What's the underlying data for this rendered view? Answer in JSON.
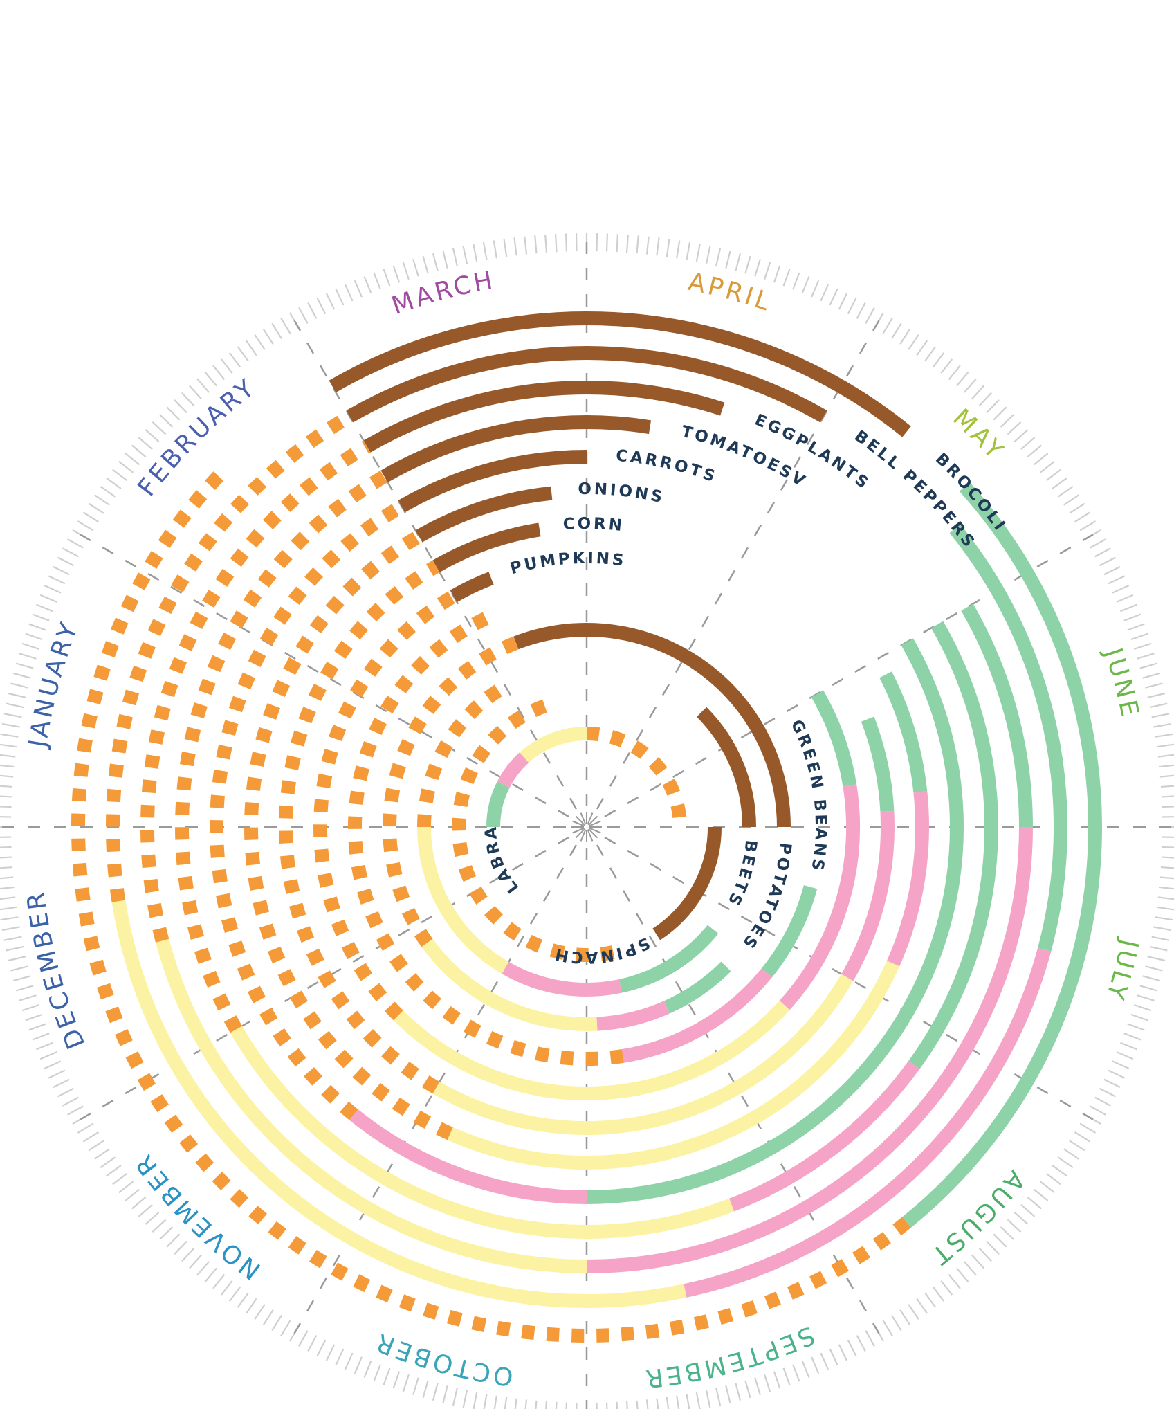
{
  "chart_data": {
    "type": "radial-timeline",
    "months": [
      {
        "label": "JANUARY",
        "color": "#3c63a8"
      },
      {
        "label": "FEBRUARY",
        "color": "#4a5fae"
      },
      {
        "label": "MARCH",
        "color": "#a04ba0"
      },
      {
        "label": "APRIL",
        "color": "#d99a3a"
      },
      {
        "label": "MAY",
        "color": "#a2c13c"
      },
      {
        "label": "JUNE",
        "color": "#6bb84a"
      },
      {
        "label": "JULY",
        "color": "#6bb84a"
      },
      {
        "label": "AUGUST",
        "color": "#4aad6a"
      },
      {
        "label": "SEPTEMBER",
        "color": "#4ab38c"
      },
      {
        "label": "OCTOBER",
        "color": "#3aa5b8"
      },
      {
        "label": "NOVEMBER",
        "color": "#2a92c4"
      },
      {
        "label": "DECEMBER",
        "color": "#3c63a8"
      }
    ],
    "phase_colors": {
      "indoor": "#98592a",
      "growing": "#8ed2a8",
      "harvest": "#f5a4c8",
      "late": "#fbf3a3",
      "dormant": "#f59a38"
    },
    "crops": [
      {
        "name": "BROCOLI",
        "segments": [
          [
            "indoor",
            2.0,
            4.3
          ],
          [
            "growing",
            4.6,
            7.7
          ],
          [
            "dormant",
            7.7,
            13.5
          ]
        ]
      },
      {
        "name": "BELL PEPPERS",
        "segments": [
          [
            "indoor",
            2.0,
            4.0
          ],
          [
            "growing",
            4.7,
            6.5
          ],
          [
            "harvest",
            6.5,
            8.6
          ],
          [
            "late",
            8.6,
            11.7
          ],
          [
            "dormant",
            11.7,
            14.0
          ]
        ]
      },
      {
        "name": "EGGPLANTS",
        "segments": [
          [
            "indoor",
            2.0,
            3.6
          ],
          [
            "growing",
            5.0,
            6.0
          ],
          [
            "harvest",
            6.0,
            9.0
          ],
          [
            "late",
            9.0,
            11.5
          ],
          [
            "dormant",
            11.5,
            14.0
          ]
        ]
      },
      {
        "name": "TOMATOESV",
        "segments": [
          [
            "indoor",
            2.0,
            3.3
          ],
          [
            "growing",
            5.0,
            7.2
          ],
          [
            "harvest",
            7.2,
            8.3
          ],
          [
            "late",
            8.3,
            11.0
          ],
          [
            "dormant",
            11.0,
            14.0
          ]
        ]
      },
      {
        "name": "CARROTS",
        "segments": [
          [
            "indoor",
            2.0,
            3.0
          ],
          [
            "growing",
            5.0,
            9.0
          ],
          [
            "harvest",
            9.0,
            10.3
          ],
          [
            "dormant",
            10.3,
            14.0
          ]
        ]
      },
      {
        "name": "ONIONS",
        "segments": [
          [
            "indoor",
            2.0,
            2.8
          ],
          [
            "growing",
            5.1,
            5.8
          ],
          [
            "harvest",
            5.8,
            6.8
          ],
          [
            "late",
            6.8,
            9.8
          ],
          [
            "dormant",
            9.8,
            14.0
          ]
        ]
      },
      {
        "name": "CORN",
        "segments": [
          [
            "indoor",
            2.0,
            2.7
          ],
          [
            "growing",
            5.3,
            5.9
          ],
          [
            "harvest",
            5.9,
            7.0
          ],
          [
            "late",
            7.0,
            10.0
          ],
          [
            "dormant",
            10.0,
            14.0
          ]
        ]
      },
      {
        "name": "PUMPKINS",
        "segments": [
          [
            "indoor",
            2.0,
            2.3
          ],
          [
            "growing",
            5.0,
            5.7
          ],
          [
            "harvest",
            5.7,
            7.4
          ],
          [
            "late",
            7.4,
            10.5
          ],
          [
            "dormant",
            10.5,
            14.0
          ]
        ]
      },
      {
        "name": "GREEN BEANS",
        "segments": [
          [
            "growing",
            6.5,
            7.3
          ],
          [
            "harvest",
            7.3,
            8.7
          ],
          [
            "dormant",
            8.7,
            14.2
          ]
        ]
      },
      {
        "name": "POTATOES",
        "segments": [
          [
            "indoor",
            2.3,
            6.0
          ],
          [
            "growing",
            7.5,
            8.2
          ],
          [
            "harvest",
            8.2,
            8.9
          ],
          [
            "late",
            8.9,
            10.8
          ],
          [
            "dormant",
            10.8,
            14.3
          ]
        ]
      },
      {
        "name": "BEETS",
        "segments": [
          [
            "indoor",
            4.5,
            6.0
          ],
          [
            "growing",
            7.3,
            8.6
          ],
          [
            "harvest",
            8.6,
            10.0
          ],
          [
            "late",
            10.0,
            12.0
          ],
          [
            "dormant",
            12.0,
            14.0
          ]
        ]
      },
      {
        "name": "SPINACH",
        "segments": [
          [
            "indoor",
            6.0,
            7.9
          ],
          [
            "dormant",
            8.6,
            14.5
          ]
        ]
      },
      {
        "name": "LABRADOR TEA",
        "segments": [
          [
            "growing",
            12.0,
            12.9
          ],
          [
            "harvest",
            12.9,
            13.6
          ],
          [
            "late",
            13.6,
            15.0
          ],
          [
            "dormant",
            15.0,
            17.8
          ]
        ]
      }
    ]
  }
}
